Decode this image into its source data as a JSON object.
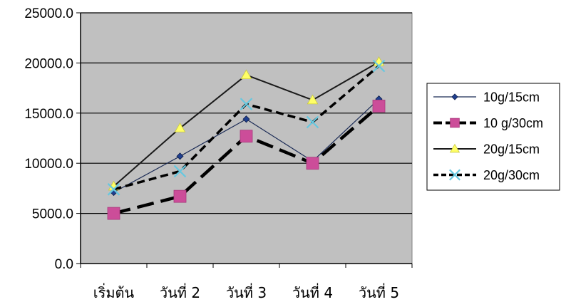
{
  "chart_data": {
    "type": "line",
    "title": "",
    "xlabel": "",
    "ylabel": "",
    "categories": [
      "เริ่มต้น",
      "วันที่ 2",
      "วันที่ 3",
      "วันที่ 4",
      "วันที่ 5"
    ],
    "ylim": [
      0,
      25000
    ],
    "yticks": [
      "0.0",
      "5000.0",
      "10000.0",
      "15000.0",
      "20000.0",
      "25000.0"
    ],
    "grid": true,
    "plot_background": "#c0c0c0",
    "legend_position": "right",
    "series": [
      {
        "name": "10g/15cm",
        "values": [
          7100,
          10700,
          14400,
          10200,
          16400
        ],
        "color": "#1a2a55",
        "marker_color": "#1f3f8f",
        "line_style": "solid-thin",
        "marker": "diamond"
      },
      {
        "name": "10 g/30cm",
        "values": [
          5000,
          6700,
          12700,
          10000,
          15700
        ],
        "color": "#000000",
        "marker_color": "#cc4d99",
        "line_style": "dashed-thick",
        "marker": "square"
      },
      {
        "name": "20g/15cm",
        "values": [
          7700,
          13500,
          18800,
          16300,
          20100
        ],
        "color": "#1a1a1a",
        "marker_color": "#ffff66",
        "line_style": "solid",
        "marker": "triangle"
      },
      {
        "name": "20g/30cm",
        "values": [
          7400,
          9200,
          15900,
          14100,
          19700
        ],
        "color": "#000000",
        "marker_color": "#66c8e0",
        "line_style": "dashed",
        "marker": "x"
      }
    ]
  }
}
